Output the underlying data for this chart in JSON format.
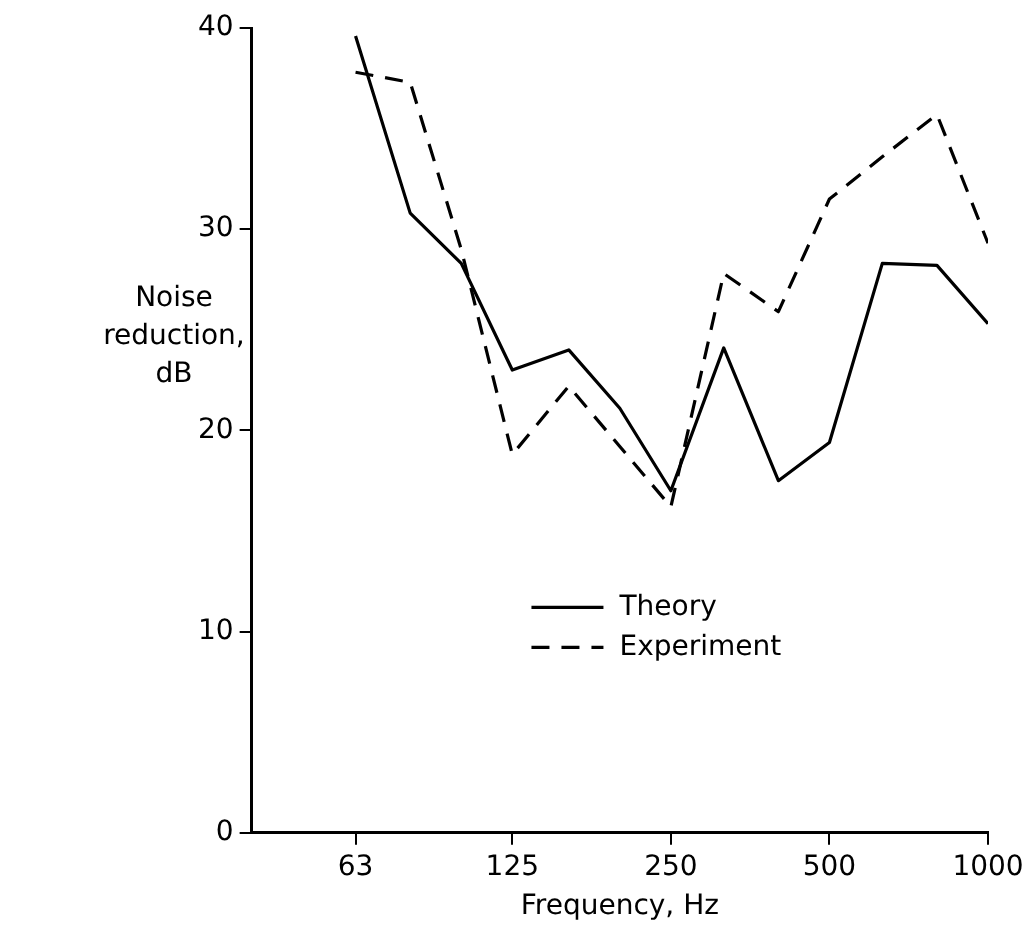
{
  "chart_data": {
    "type": "line",
    "xlabel": "Frequency, Hz",
    "ylabel": "Noise reduction, dB",
    "x": [
      63,
      80,
      100,
      125,
      160,
      200,
      250,
      315,
      400,
      500,
      630,
      800,
      1000
    ],
    "series": [
      {
        "name": "Theory",
        "color": "#000000",
        "line_style": "solid",
        "values": [
          39.6,
          30.8,
          28.3,
          23.0,
          24.0,
          21.1,
          17.0,
          24.1,
          17.5,
          19.4,
          28.3,
          28.2,
          25.3
        ]
      },
      {
        "name": "Experiment",
        "color": "#000000",
        "line_style": "dashed",
        "values": [
          37.8,
          37.3,
          29.0,
          18.8,
          22.2,
          19.2,
          16.2,
          27.8,
          25.9,
          31.5,
          33.6,
          35.7,
          29.3
        ]
      }
    ],
    "log": "x",
    "xlim": [
      40,
      1000
    ],
    "xticks": [
      63,
      125,
      250,
      500,
      1000
    ],
    "ylim": [
      0,
      40
    ],
    "yticks": [
      0,
      10,
      20,
      30,
      40
    ],
    "grid": false,
    "legend": "bottom",
    "marker": "none"
  }
}
